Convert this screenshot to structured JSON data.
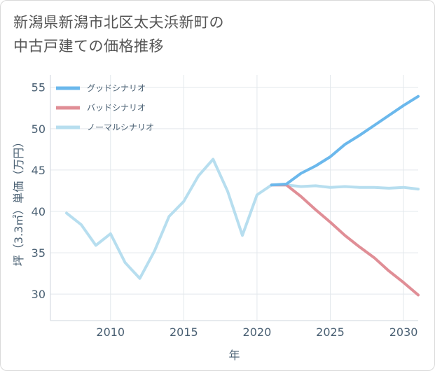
{
  "page": {
    "title_line1": "新潟県新潟市北区太夫浜新町の",
    "title_line2": "中古戸建ての価格推移"
  },
  "chart_data": {
    "type": "line",
    "title": "新潟県新潟市北区太夫浜新町の中古戸建ての価格推移",
    "xlabel": "年",
    "ylabel": "坪（3.3㎡）単価（万円）",
    "xlim": [
      2005.9,
      2031
    ],
    "ylim": [
      26.8,
      56.5
    ],
    "xticks": [
      2010,
      2015,
      2020,
      2025,
      2030
    ],
    "yticks": [
      30,
      35,
      40,
      45,
      50,
      55
    ],
    "grid": true,
    "legend_position": "top-left",
    "series": [
      {
        "name": "グッドシナリオ",
        "color": "#6bb8ec",
        "x": [
          2021,
          2022,
          2023,
          2024,
          2025,
          2026,
          2027,
          2028,
          2029,
          2030,
          2031
        ],
        "y": [
          43.2,
          43.3,
          44.6,
          45.5,
          46.6,
          48.1,
          49.2,
          50.4,
          51.6,
          52.8,
          53.9
        ]
      },
      {
        "name": "バッドシナリオ",
        "color": "#e08e96",
        "x": [
          2021,
          2022,
          2023,
          2024,
          2025,
          2026,
          2027,
          2028,
          2029,
          2030,
          2031
        ],
        "y": [
          43.2,
          43.2,
          41.8,
          40.2,
          38.7,
          37.1,
          35.7,
          34.4,
          32.8,
          31.4,
          29.9
        ]
      },
      {
        "name": "ノーマルシナリオ",
        "color": "#b7deef",
        "x": [
          2007,
          2008,
          2009,
          2010,
          2011,
          2012,
          2013,
          2014,
          2015,
          2016,
          2017,
          2018,
          2019,
          2020,
          2021,
          2022,
          2023,
          2024,
          2025,
          2026,
          2027,
          2028,
          2029,
          2030,
          2031
        ],
        "y": [
          39.8,
          38.4,
          35.9,
          37.3,
          33.8,
          31.9,
          35.2,
          39.4,
          41.2,
          44.3,
          46.3,
          42.4,
          37.1,
          42.0,
          43.2,
          43.2,
          43.0,
          43.1,
          42.9,
          43.0,
          42.9,
          42.9,
          42.8,
          42.9,
          42.7
        ]
      }
    ]
  }
}
